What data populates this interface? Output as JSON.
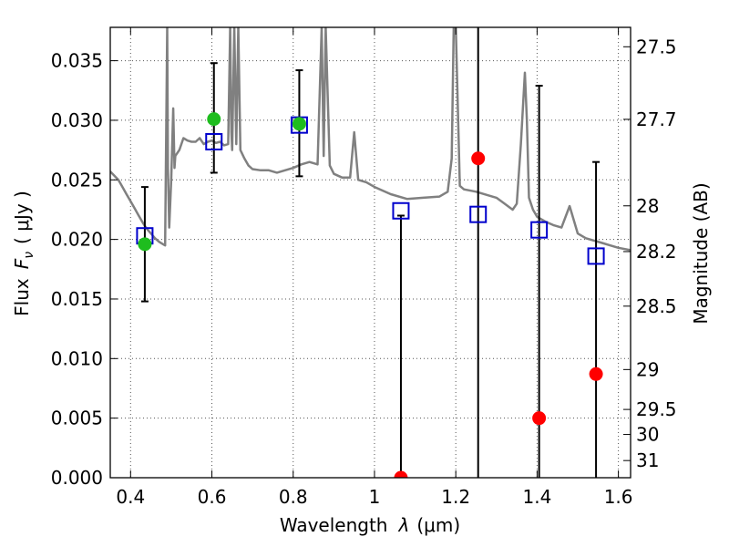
{
  "chart_data": {
    "type": "scatter",
    "xlabel_text": "Wavelength",
    "xlabel_symbol": "λ",
    "xlabel_unit": "(μm)",
    "ylabel_text": "Flux",
    "ylabel_symbol": "F",
    "ylabel_subscript": "ν",
    "ylabel_unit": "( μJy )",
    "y2label": "Magnitude (AB)",
    "xlim": [
      0.35,
      1.63
    ],
    "ylim": [
      0.0,
      0.0378
    ],
    "grid": true,
    "grid_style": "dotted",
    "x_ticks": [
      0.4,
      0.6,
      0.8,
      1.0,
      1.2,
      1.4,
      1.6
    ],
    "x_tick_labels": [
      "0.4",
      "0.6",
      "0.8",
      "1",
      "1.2",
      "1.4",
      "1.6"
    ],
    "y_ticks": [
      0.0,
      0.005,
      0.01,
      0.015,
      0.02,
      0.025,
      0.03,
      0.035
    ],
    "y_tick_labels": [
      "0.000",
      "0.005",
      "0.010",
      "0.015",
      "0.020",
      "0.025",
      "0.030",
      "0.035"
    ],
    "y2_ticks": [
      {
        "label": "27.5",
        "flux": 0.03617
      },
      {
        "label": "27.7",
        "flux": 0.03008
      },
      {
        "label": "28",
        "flux": 0.02282
      },
      {
        "label": "28.2",
        "flux": 0.01898
      },
      {
        "label": "28.5",
        "flux": 0.0144
      },
      {
        "label": "29",
        "flux": 0.00908
      },
      {
        "label": "29.5",
        "flux": 0.00573
      },
      {
        "label": "30",
        "flux": 0.00363
      },
      {
        "label": "31",
        "flux": 0.00144
      }
    ],
    "colors": {
      "spectrum": "#808080",
      "model_marker": "#0000cc",
      "detection": "#1ebd1e",
      "non_detection": "#ff0000",
      "errorbar": "#000000",
      "grid": "#555555"
    },
    "series": [
      {
        "kind": "model_spectrum",
        "x": [
          0.35,
          0.37,
          0.38,
          0.39,
          0.4,
          0.41,
          0.42,
          0.43,
          0.44,
          0.45,
          0.46,
          0.47,
          0.48,
          0.485,
          0.49,
          0.492,
          0.495,
          0.5,
          0.505,
          0.508,
          0.51,
          0.52,
          0.53,
          0.54,
          0.55,
          0.56,
          0.57,
          0.58,
          0.59,
          0.6,
          0.61,
          0.62,
          0.63,
          0.64,
          0.645,
          0.648,
          0.65,
          0.655,
          0.66,
          0.665,
          0.67,
          0.68,
          0.69,
          0.7,
          0.72,
          0.74,
          0.76,
          0.78,
          0.8,
          0.82,
          0.84,
          0.86,
          0.87,
          0.875,
          0.88,
          0.89,
          0.9,
          0.92,
          0.94,
          0.95,
          0.96,
          0.98,
          1.0,
          1.04,
          1.08,
          1.12,
          1.16,
          1.18,
          1.19,
          1.195,
          1.2,
          1.21,
          1.22,
          1.25,
          1.28,
          1.3,
          1.32,
          1.34,
          1.35,
          1.36,
          1.37,
          1.375,
          1.38,
          1.39,
          1.4,
          1.42,
          1.44,
          1.46,
          1.48,
          1.5,
          1.52,
          1.54,
          1.56,
          1.58,
          1.6,
          1.63
        ],
        "y": [
          0.0257,
          0.025,
          0.0244,
          0.0238,
          0.0232,
          0.0226,
          0.022,
          0.0214,
          0.0209,
          0.0205,
          0.0201,
          0.0198,
          0.0196,
          0.0195,
          0.0378,
          0.026,
          0.021,
          0.025,
          0.031,
          0.026,
          0.027,
          0.0275,
          0.0285,
          0.0283,
          0.0282,
          0.0282,
          0.0285,
          0.028,
          0.0282,
          0.0283,
          0.0281,
          0.0282,
          0.0279,
          0.028,
          0.0378,
          0.029,
          0.0275,
          0.0378,
          0.028,
          0.0378,
          0.0275,
          0.0268,
          0.0262,
          0.0259,
          0.0258,
          0.0258,
          0.0256,
          0.0258,
          0.026,
          0.0263,
          0.0265,
          0.0263,
          0.0378,
          0.027,
          0.0378,
          0.0262,
          0.0255,
          0.0252,
          0.0252,
          0.029,
          0.025,
          0.0248,
          0.0244,
          0.0238,
          0.0234,
          0.0235,
          0.0236,
          0.024,
          0.0268,
          0.0378,
          0.0378,
          0.0245,
          0.0242,
          0.024,
          0.0237,
          0.0235,
          0.023,
          0.0225,
          0.023,
          0.028,
          0.034,
          0.03,
          0.0235,
          0.0225,
          0.0219,
          0.0215,
          0.0212,
          0.021,
          0.0228,
          0.0205,
          0.0201,
          0.0199,
          0.0197,
          0.0195,
          0.0193,
          0.0191
        ]
      },
      {
        "kind": "model_photometry",
        "marker": "open-square",
        "x": [
          0.435,
          0.605,
          0.815,
          1.065,
          1.255,
          1.405,
          1.545
        ],
        "y": [
          0.0203,
          0.0282,
          0.0296,
          0.0224,
          0.0221,
          0.0208,
          0.0186
        ]
      },
      {
        "kind": "detections",
        "marker": "filled-circle",
        "x": [
          0.435,
          0.605,
          0.815
        ],
        "y": [
          0.0196,
          0.0301,
          0.0297
        ],
        "err_low": [
          0.0148,
          0.0256,
          0.0253
        ],
        "err_high": [
          0.0244,
          0.0348,
          0.0342
        ]
      },
      {
        "kind": "non_detections",
        "marker": "filled-circle",
        "x": [
          1.065,
          1.255,
          1.405,
          1.545
        ],
        "y": [
          0.0,
          0.0268,
          0.005,
          0.0087
        ],
        "err_low": [
          0.0,
          0.0,
          0.0,
          0.0
        ],
        "err_high": [
          0.022,
          0.0378,
          0.0329,
          0.0265
        ]
      }
    ]
  }
}
